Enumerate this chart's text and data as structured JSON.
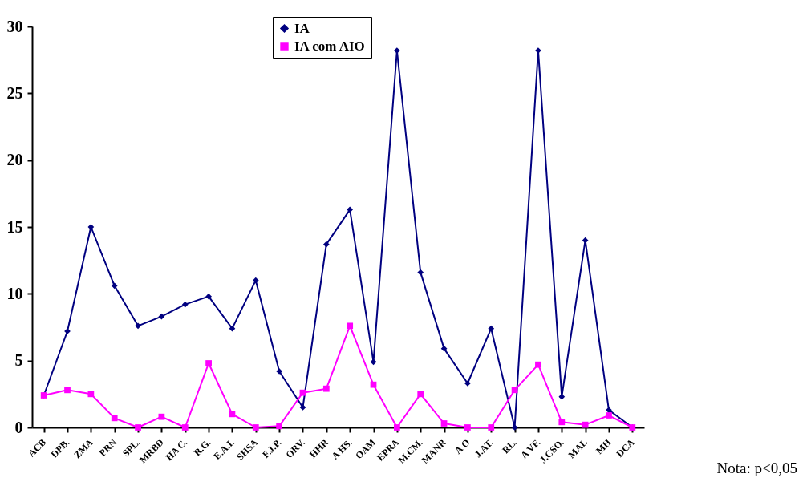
{
  "chart_data": {
    "type": "line",
    "categories": [
      "ACB",
      "DPB.",
      "ZMA",
      "PRN",
      "SPL.",
      "MRBD",
      "HA C.",
      "R.G.",
      "E.A.I.",
      "SHSA",
      "F.J.P.",
      "ORV.",
      "HHR",
      "A HS.",
      "OAM",
      "EPRA",
      "M.CM.",
      "MANR",
      "A O",
      "J.AT.",
      "RL.",
      "A VF.",
      "J.CSO.",
      "MAL",
      "MH",
      "DCA"
    ],
    "series": [
      {
        "name": "IA",
        "color": "#000080",
        "marker": "diamond",
        "values": [
          2.4,
          7.2,
          15,
          10.6,
          7.6,
          8.3,
          9.2,
          9.8,
          7.4,
          11,
          4.2,
          1.5,
          13.7,
          16.3,
          4.9,
          28.2,
          11.6,
          5.9,
          3.3,
          7.4,
          0,
          28.2,
          2.3,
          14,
          1.3,
          0
        ]
      },
      {
        "name": "IA com AIO",
        "color": "#ff00ff",
        "marker": "square",
        "values": [
          2.4,
          2.8,
          2.5,
          0.7,
          0,
          0.8,
          0,
          4.8,
          1,
          0,
          0.1,
          2.6,
          2.9,
          7.6,
          3.2,
          0,
          2.5,
          0.3,
          0,
          0,
          2.8,
          4.7,
          0.4,
          0.2,
          0.9,
          0
        ]
      }
    ],
    "ylim": [
      0,
      30
    ],
    "yticks": [
      0,
      5,
      10,
      15,
      20,
      25,
      30
    ],
    "legend": "top",
    "annotations": [
      "Nota: p<0,05"
    ]
  }
}
